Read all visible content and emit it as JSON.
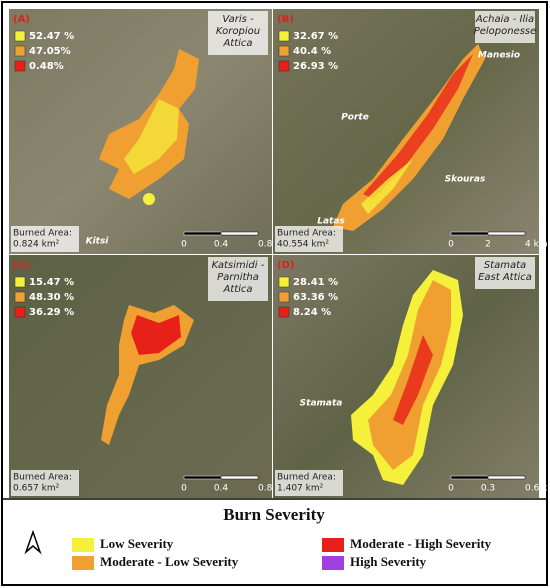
{
  "panels": [
    {
      "label": "(A)",
      "location": [
        "Varis -",
        "Koropiou",
        "Attica"
      ],
      "legend": [
        "52.47 %",
        "47.05%",
        "0.48%"
      ],
      "burned_area": [
        "Burned Area:",
        "0.824 km²"
      ],
      "places": [
        "Kitsi"
      ],
      "scale": [
        "0",
        "0.4",
        "0.8 km"
      ]
    },
    {
      "label": "(B)",
      "location": [
        "Achaia - Ilia",
        "Peloponesse"
      ],
      "legend": [
        "32.67 %",
        "40.4 %",
        "26.93 %"
      ],
      "burned_area": [
        "Burned Area:",
        "40.554 km²"
      ],
      "places": [
        "Manesio",
        "Porte",
        "Skouras",
        "Latas"
      ],
      "scale": [
        "0",
        "2",
        "4 km"
      ]
    },
    {
      "label": "(C)",
      "location": [
        "Katsimidi -",
        "Parnitha",
        "Attica"
      ],
      "legend": [
        "15.47 %",
        "48.30 %",
        "36.29 %"
      ],
      "burned_area": [
        "Burned Area:",
        "0.657 km²"
      ],
      "places": [],
      "scale": [
        "0",
        "0.4",
        "0.8 km"
      ]
    },
    {
      "label": "(D)",
      "location": [
        "Stamata",
        "East Attica"
      ],
      "legend": [
        "28.41 %",
        "63.36 %",
        "8.24 %"
      ],
      "burned_area": [
        "Burned Area:",
        "1.407 km²"
      ],
      "places": [
        "Stamata"
      ],
      "scale": [
        "0",
        "0.3",
        "0.6 km"
      ]
    }
  ],
  "legend": {
    "title": "Burn Severity",
    "items": [
      "Low Severity",
      "Moderate - Low Severity",
      "Moderate - High Severity",
      "High Severity"
    ]
  }
}
